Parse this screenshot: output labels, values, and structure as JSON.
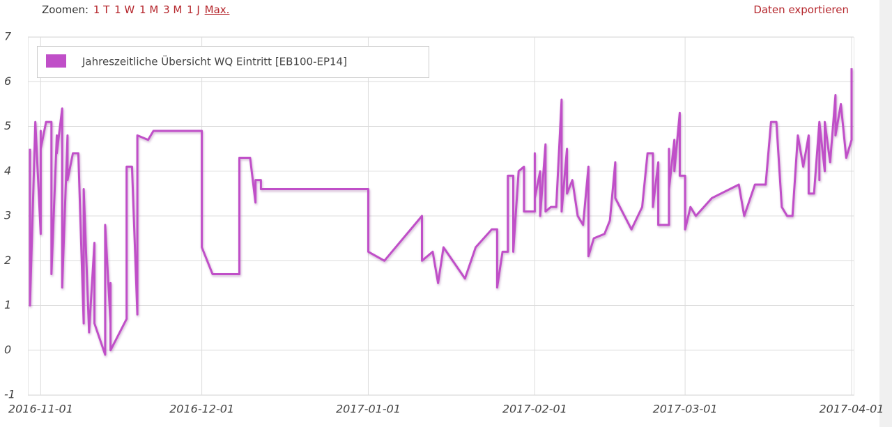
{
  "toolbar": {
    "label": "Zoomen:",
    "zoom_options": [
      "1 T",
      "1 W",
      "1 M",
      "3 M",
      "1 J",
      "Max."
    ],
    "export": "Daten exportieren"
  },
  "chart_data": {
    "type": "line",
    "x": [
      "2016-10-30",
      "2016-10-30",
      "2016-10-31",
      "2016-10-31",
      "2016-11-01",
      "2016-11-01",
      "2016-11-01",
      "2016-11-02",
      "2016-11-03",
      "2016-11-03",
      "2016-11-03",
      "2016-11-04",
      "2016-11-04",
      "2016-11-05",
      "2016-11-05",
      "2016-11-05",
      "2016-11-06",
      "2016-11-06",
      "2016-11-06",
      "2016-11-07",
      "2016-11-08",
      "2016-11-09",
      "2016-11-09",
      "2016-11-09",
      "2016-11-10",
      "2016-11-10",
      "2016-11-11",
      "2016-11-11",
      "2016-11-11",
      "2016-11-13",
      "2016-11-13",
      "2016-11-13",
      "2016-11-14",
      "2016-11-14",
      "2016-11-14",
      "2016-11-17",
      "2016-11-17",
      "2016-11-18",
      "2016-11-19",
      "2016-11-19",
      "2016-11-21",
      "2016-11-22",
      "2016-12-01",
      "2016-12-01",
      "2016-12-03",
      "2016-12-08",
      "2016-12-08",
      "2016-12-10",
      "2016-12-11",
      "2016-12-11",
      "2016-12-12",
      "2016-12-12",
      "2017-01-01",
      "2017-01-01",
      "2017-01-04",
      "2017-01-11",
      "2017-01-11",
      "2017-01-13",
      "2017-01-14",
      "2017-01-15",
      "2017-01-19",
      "2017-01-21",
      "2017-01-24",
      "2017-01-25",
      "2017-01-25",
      "2017-01-26",
      "2017-01-27",
      "2017-01-27",
      "2017-01-28",
      "2017-01-28",
      "2017-01-29",
      "2017-01-30",
      "2017-01-30",
      "2017-02-01",
      "2017-02-01",
      "2017-02-01",
      "2017-02-02",
      "2017-02-02",
      "2017-02-03",
      "2017-02-03",
      "2017-02-03",
      "2017-02-04",
      "2017-02-05",
      "2017-02-06",
      "2017-02-06",
      "2017-02-06",
      "2017-02-07",
      "2017-02-07",
      "2017-02-08",
      "2017-02-09",
      "2017-02-10",
      "2017-02-11",
      "2017-02-11",
      "2017-02-12",
      "2017-02-14",
      "2017-02-15",
      "2017-02-16",
      "2017-02-16",
      "2017-02-19",
      "2017-02-21",
      "2017-02-22",
      "2017-02-23",
      "2017-02-23",
      "2017-02-24",
      "2017-02-24",
      "2017-02-26",
      "2017-02-26",
      "2017-02-26",
      "2017-02-27",
      "2017-02-27",
      "2017-02-28",
      "2017-02-28",
      "2017-02-28",
      "2017-03-01",
      "2017-03-01",
      "2017-03-02",
      "2017-03-03",
      "2017-03-06",
      "2017-03-11",
      "2017-03-12",
      "2017-03-14",
      "2017-03-16",
      "2017-03-17",
      "2017-03-18",
      "2017-03-19",
      "2017-03-20",
      "2017-03-21",
      "2017-03-22",
      "2017-03-23",
      "2017-03-24",
      "2017-03-24",
      "2017-03-24",
      "2017-03-25",
      "2017-03-26",
      "2017-03-26",
      "2017-03-26",
      "2017-03-27",
      "2017-03-27",
      "2017-03-28",
      "2017-03-29",
      "2017-03-29",
      "2017-03-30",
      "2017-03-30",
      "2017-03-31",
      "2017-04-01",
      "2017-04-01",
      "2017-04-01"
    ],
    "series": [
      {
        "name": "Jahreszeitliche Übersicht WQ Eintritt [EB100-EP14]",
        "color": "#c04fc8",
        "values": [
          4.5,
          1.0,
          5.1,
          5.1,
          2.6,
          4.9,
          4.5,
          5.1,
          5.1,
          1.7,
          1.7,
          4.8,
          4.4,
          5.4,
          4.4,
          1.4,
          4.8,
          4.8,
          3.8,
          4.4,
          4.4,
          0.6,
          3.6,
          3.6,
          0.4,
          0.4,
          2.4,
          2.4,
          0.6,
          -0.1,
          -0.1,
          2.8,
          0.6,
          1.5,
          0.0,
          0.7,
          4.1,
          4.1,
          0.8,
          4.8,
          4.7,
          4.9,
          4.9,
          2.3,
          1.7,
          1.7,
          4.3,
          4.3,
          3.3,
          3.8,
          3.8,
          3.6,
          3.6,
          2.2,
          2.0,
          3.0,
          2.0,
          2.2,
          1.5,
          2.3,
          1.6,
          2.3,
          2.7,
          2.7,
          1.4,
          2.2,
          2.2,
          3.9,
          3.9,
          2.2,
          4.0,
          4.1,
          3.1,
          3.1,
          4.4,
          3.4,
          4.0,
          3.0,
          4.6,
          4.6,
          3.1,
          3.2,
          3.2,
          5.6,
          5.6,
          3.1,
          4.5,
          3.5,
          3.8,
          3.0,
          2.8,
          4.1,
          2.1,
          2.5,
          2.6,
          2.9,
          4.2,
          3.4,
          2.7,
          3.2,
          4.4,
          4.4,
          3.2,
          4.2,
          2.8,
          2.8,
          4.5,
          3.6,
          4.7,
          4.0,
          5.3,
          5.3,
          3.9,
          3.9,
          2.7,
          3.2,
          3.0,
          3.4,
          3.7,
          3.0,
          3.7,
          3.7,
          5.1,
          5.1,
          3.2,
          3.0,
          3.0,
          4.8,
          4.1,
          4.8,
          4.8,
          3.5,
          3.5,
          5.1,
          3.8,
          5.1,
          4.0,
          5.1,
          4.2,
          5.7,
          4.8,
          5.5,
          5.5,
          4.3,
          4.7,
          6.3,
          6.3
        ]
      }
    ],
    "xlim": [
      "2016-10-30",
      "2017-04-01"
    ],
    "xticks": [
      "2016-11-01",
      "2016-12-01",
      "2017-01-01",
      "2017-02-01",
      "2017-03-01",
      "2017-04-01"
    ],
    "ylim": [
      -1,
      7
    ],
    "yticks": [
      -1,
      0,
      1,
      2,
      3,
      4,
      5,
      6,
      7
    ],
    "grid": true,
    "legend": "top-left"
  }
}
